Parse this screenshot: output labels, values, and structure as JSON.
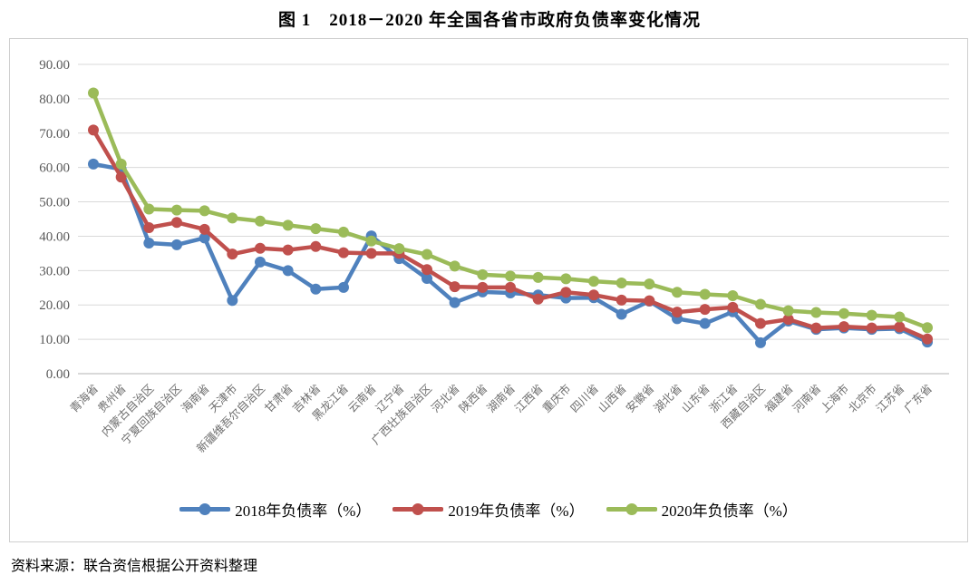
{
  "title": "图 1　2018－2020 年全国各省市政府负债率变化情况",
  "source": "资料来源：联合资信根据公开资料整理",
  "chart_data": {
    "type": "line",
    "title": "图 1　2018－2020 年全国各省市政府负债率变化情况",
    "xlabel": "",
    "ylabel": "",
    "ylim": [
      0,
      90
    ],
    "ytick_step": 10,
    "ytick_labels": [
      "0.00",
      "10.00",
      "20.00",
      "30.00",
      "40.00",
      "50.00",
      "60.00",
      "70.00",
      "80.00",
      "90.00"
    ],
    "grid": true,
    "legend_position": "bottom",
    "categories": [
      "青海省",
      "贵州省",
      "内蒙古自治区",
      "宁夏回族自治区",
      "海南省",
      "天津市",
      "新疆维吾尔自治区",
      "甘肃省",
      "吉林省",
      "黑龙江省",
      "云南省",
      "辽宁省",
      "广西壮族自治区",
      "河北省",
      "陕西省",
      "湖南省",
      "江西省",
      "重庆市",
      "四川省",
      "山西省",
      "安徽省",
      "湖北省",
      "山东省",
      "浙江省",
      "西藏自治区",
      "福建省",
      "河南省",
      "上海市",
      "北京市",
      "江苏省",
      "广东省"
    ],
    "series": [
      {
        "name": "2018年负债率（%）",
        "color": "#4F81BD",
        "values": [
          61.0,
          59.5,
          38.0,
          37.5,
          39.5,
          21.3,
          32.5,
          30.0,
          24.6,
          25.1,
          40.1,
          33.5,
          27.7,
          20.7,
          23.8,
          23.5,
          22.9,
          22.0,
          22.1,
          17.3,
          21.1,
          16.0,
          14.6,
          18.0,
          9.0,
          15.3,
          12.9,
          13.3,
          12.9,
          13.1,
          9.2
        ]
      },
      {
        "name": "2019年负债率（%）",
        "color": "#C0504D",
        "values": [
          70.9,
          57.2,
          42.5,
          44.0,
          42.0,
          34.8,
          36.5,
          36.0,
          37.0,
          35.2,
          35.0,
          35.0,
          30.3,
          25.3,
          25.1,
          25.1,
          21.7,
          23.7,
          22.9,
          21.4,
          21.2,
          17.9,
          18.7,
          19.3,
          14.6,
          15.8,
          13.3,
          13.7,
          13.3,
          13.6,
          10.1
        ]
      },
      {
        "name": "2020年负债率（%）",
        "color": "#9BBB59",
        "values": [
          81.7,
          61.0,
          47.9,
          47.6,
          47.4,
          45.3,
          44.4,
          43.2,
          42.2,
          41.2,
          38.6,
          36.4,
          34.7,
          31.3,
          28.8,
          28.4,
          28.0,
          27.6,
          26.9,
          26.4,
          26.1,
          23.7,
          23.1,
          22.7,
          20.2,
          18.3,
          17.8,
          17.5,
          17.0,
          16.5,
          13.4
        ]
      }
    ]
  }
}
